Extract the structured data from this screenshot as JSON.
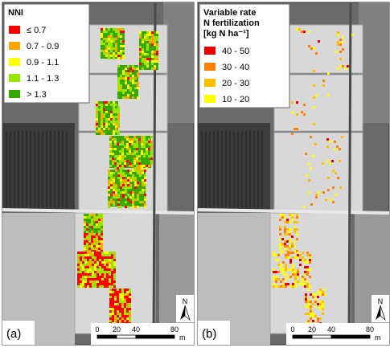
{
  "panels": [
    {
      "label": "(a)",
      "legend": {
        "title": [
          "NNI"
        ],
        "items": [
          {
            "label": "≤ 0.7",
            "color": "#ff0000"
          },
          {
            "label": "0.7 - 0.9",
            "color": "#ffa500"
          },
          {
            "label": "0.9 - 1.1",
            "color": "#ffff00"
          },
          {
            "label": "1.1 - 1.3",
            "color": "#98e600"
          },
          {
            "label": "> 1.3",
            "color": "#38a800"
          }
        ]
      }
    },
    {
      "label": "(b)",
      "legend": {
        "title": [
          "Variable rate",
          "N fertilization",
          "[kg N ha⁻¹]"
        ],
        "items": [
          {
            "label": "40 - 50",
            "color": "#e60000"
          },
          {
            "label": "30 - 40",
            "color": "#ff7f00"
          },
          {
            "label": "20 - 30",
            "color": "#ffbe00"
          },
          {
            "label": "10 - 20",
            "color": "#ffff00"
          }
        ]
      }
    }
  ],
  "scale_bar": {
    "ticks": [
      "0",
      "20",
      "40",
      "80"
    ],
    "unit": "m"
  },
  "north": "N"
}
